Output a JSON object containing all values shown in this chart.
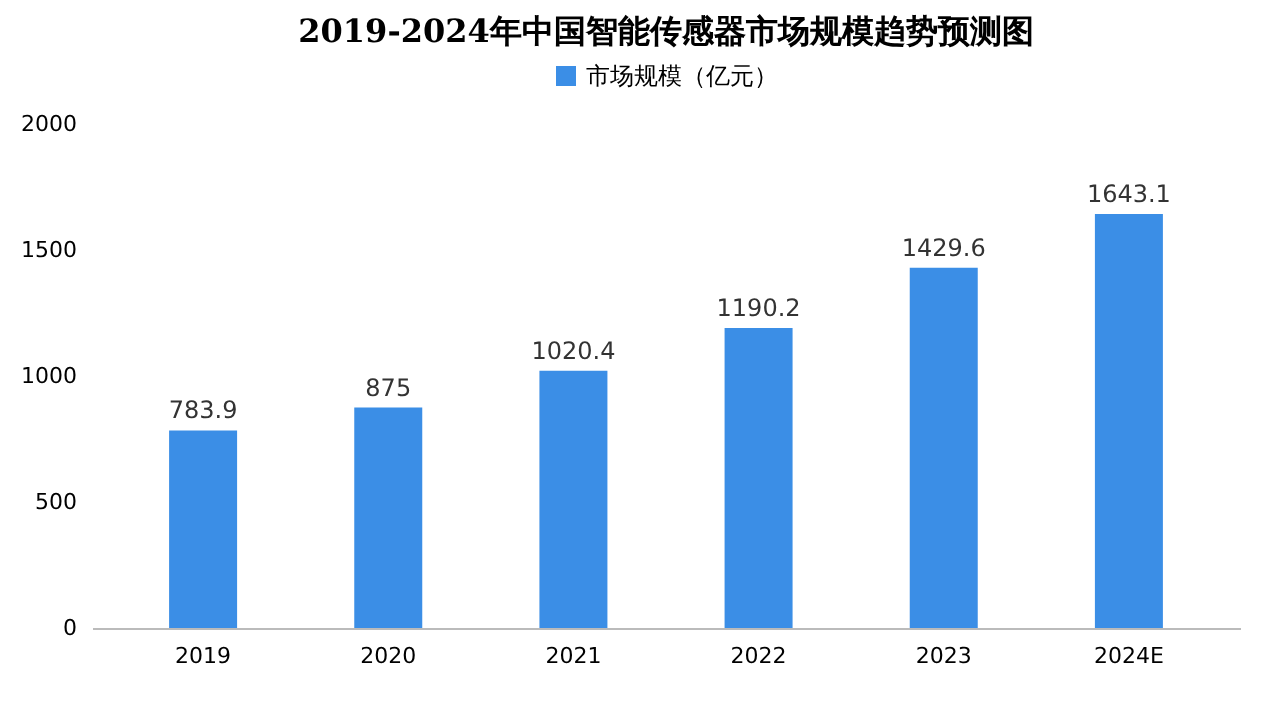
{
  "chart_data": {
    "type": "bar",
    "title": "2019-2024年中国智能传感器市场规模趋势预测图",
    "categories": [
      "2019",
      "2020",
      "2021",
      "2022",
      "2023",
      "2024E"
    ],
    "series": [
      {
        "name": "市场规模（亿元）",
        "color": "#3b8ee6",
        "values": [
          783.9,
          875,
          1020.4,
          1190.2,
          1429.6,
          1643.1
        ]
      }
    ],
    "ylim": [
      0,
      2000
    ],
    "yticks": [
      0,
      500,
      1000,
      1500,
      2000
    ],
    "grid": false,
    "legend": "top",
    "data_labels": true
  }
}
